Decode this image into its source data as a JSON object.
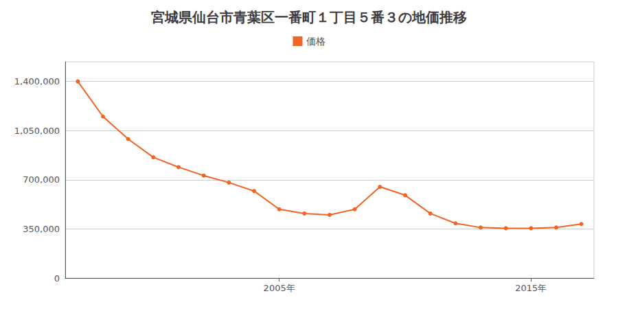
{
  "chart_data": {
    "type": "line",
    "title": "宮城県仙台市青葉区一番町１丁目５番３の地価推移",
    "x": [
      1997,
      1998,
      1999,
      2000,
      2001,
      2002,
      2003,
      2004,
      2005,
      2006,
      2007,
      2008,
      2009,
      2010,
      2011,
      2012,
      2013,
      2014,
      2015,
      2016,
      2017
    ],
    "series": [
      {
        "name": "価格",
        "color": "#f06424",
        "values": [
          1400000,
          1150000,
          990000,
          860000,
          790000,
          730000,
          680000,
          620000,
          490000,
          460000,
          450000,
          490000,
          650000,
          590000,
          460000,
          390000,
          360000,
          355000,
          355000,
          360000,
          385000
        ]
      }
    ],
    "xlim": [
      1996.5,
      2017.5
    ],
    "xticks": [
      {
        "value": 2005,
        "label": "2005年"
      },
      {
        "value": 2015,
        "label": "2015年"
      }
    ],
    "ylim": [
      0,
      1540000
    ],
    "yticks": [
      0,
      {
        "value": 350000,
        "label": "350,000"
      },
      {
        "value": 700000,
        "label": "700,000"
      },
      {
        "value": 1050000,
        "label": "1,050,000"
      },
      {
        "value": 1400000,
        "label": "1,400,000"
      }
    ],
    "grid": true,
    "legend": "top",
    "marker": "circle"
  }
}
